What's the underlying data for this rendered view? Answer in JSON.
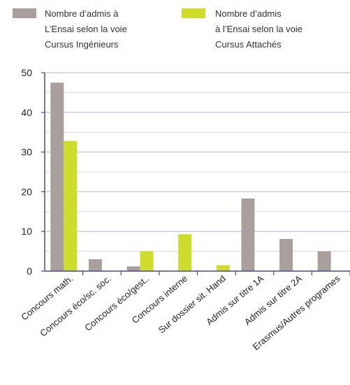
{
  "chart_data": {
    "type": "bar",
    "categories": [
      "Concours math.",
      "Concours éco/sc. soc.",
      "Concours éco/gest..",
      "Concours interne",
      "Sur dossier sit. Hand",
      "Admis sur titre 1A",
      "Admis sur titre 2A",
      "Erasmus/Autres programes"
    ],
    "series": [
      {
        "name": "Nombre d’admis à L’Ensai selon la voie Cursus Ingénieurs",
        "legend_lines": [
          "Nombre d’admis à",
          "L’Ensai selon la voie",
          "Cursus Ingénieurs"
        ],
        "color": "#a9a09e",
        "values": [
          47.5,
          3,
          1.2,
          0,
          0,
          18.3,
          8.1,
          5
        ]
      },
      {
        "name": "Nombre d’admis à l’Ensai selon la voie Cursus Attachés",
        "legend_lines": [
          "Nombre d’admis",
          "à l’Ensai selon la voie",
          "Cursus Attachés"
        ],
        "color": "#cedc2c",
        "values": [
          32.8,
          0,
          5,
          9.3,
          1.5,
          0,
          0,
          0
        ]
      }
    ],
    "ylim": [
      0,
      50
    ],
    "yticks": [
      0,
      10,
      20,
      30,
      40,
      50
    ],
    "title": "",
    "xlabel": "",
    "ylabel": "",
    "grid": true,
    "legend_position": "top"
  }
}
